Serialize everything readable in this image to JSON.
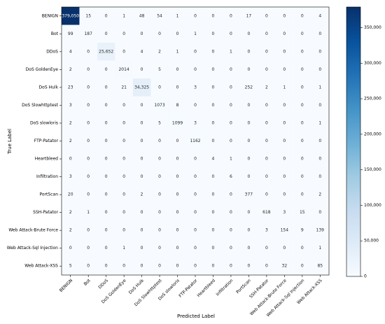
{
  "chart_data": {
    "type": "heatmap",
    "xlabel": "Predicted Label",
    "ylabel": "True Label",
    "x_categories": [
      "BENIGN",
      "Bot",
      "DDoS",
      "DoS GoldenEye",
      "DoS Hulk",
      "DoS Slowhttptest",
      "DoS slowloris",
      "FTP-Patator",
      "Heartbleed",
      "Infiltration",
      "PortScan",
      "SSH-Patator",
      "Web Attack-Brute Force",
      "Web Attack-Sql Injection",
      "Web Attack-XSS"
    ],
    "y_categories": [
      "BENIGN",
      "Bot",
      "DDoS",
      "DoS GoldenEye",
      "DoS Hulk",
      "DoS Slowhttptest",
      "DoS slowloris",
      "FTP-Patator",
      "Heartbleed",
      "Infiltration",
      "PortScan",
      "SSH-Patator",
      "Web Attack-Brute Force",
      "Web Attack-Sql Injection",
      "Web Attack-XSS"
    ],
    "values": [
      [
        379050,
        15,
        0,
        1,
        48,
        54,
        1,
        0,
        0,
        0,
        17,
        0,
        0,
        0,
        4
      ],
      [
        99,
        187,
        0,
        0,
        0,
        0,
        0,
        1,
        0,
        0,
        0,
        0,
        0,
        0,
        0
      ],
      [
        4,
        0,
        25652,
        0,
        4,
        2,
        1,
        0,
        0,
        1,
        0,
        0,
        0,
        0,
        0
      ],
      [
        2,
        0,
        0,
        2014,
        0,
        5,
        0,
        0,
        0,
        0,
        0,
        0,
        0,
        0,
        0
      ],
      [
        23,
        0,
        0,
        21,
        34325,
        0,
        0,
        3,
        0,
        0,
        252,
        2,
        1,
        0,
        1
      ],
      [
        3,
        0,
        0,
        0,
        0,
        1073,
        8,
        0,
        0,
        0,
        0,
        0,
        0,
        0,
        0
      ],
      [
        2,
        0,
        0,
        0,
        0,
        5,
        1099,
        3,
        0,
        0,
        0,
        0,
        0,
        0,
        1
      ],
      [
        2,
        0,
        0,
        0,
        0,
        0,
        0,
        1162,
        0,
        0,
        0,
        0,
        0,
        0,
        0
      ],
      [
        0,
        0,
        0,
        0,
        0,
        0,
        0,
        0,
        4,
        1,
        0,
        0,
        0,
        0,
        0
      ],
      [
        3,
        0,
        0,
        0,
        0,
        0,
        0,
        0,
        0,
        6,
        0,
        0,
        0,
        0,
        0
      ],
      [
        20,
        0,
        0,
        0,
        2,
        0,
        0,
        0,
        0,
        0,
        377,
        0,
        0,
        0,
        2
      ],
      [
        2,
        1,
        0,
        0,
        0,
        0,
        0,
        0,
        0,
        0,
        0,
        618,
        3,
        15,
        0
      ],
      [
        2,
        0,
        0,
        0,
        0,
        0,
        0,
        0,
        0,
        0,
        0,
        3,
        154,
        9,
        139
      ],
      [
        0,
        0,
        0,
        1,
        0,
        0,
        0,
        0,
        0,
        0,
        0,
        0,
        0,
        0,
        1
      ],
      [
        5,
        0,
        0,
        0,
        0,
        0,
        0,
        0,
        0,
        0,
        0,
        0,
        32,
        0,
        85
      ]
    ],
    "value_labels": [
      [
        "379,050",
        "15",
        "0",
        "1",
        "48",
        "54",
        "1",
        "0",
        "0",
        "0",
        "17",
        "0",
        "0",
        "0",
        "4"
      ],
      [
        "99",
        "187",
        "0",
        "0",
        "0",
        "0",
        "0",
        "1",
        "0",
        "0",
        "0",
        "0",
        "0",
        "0",
        "0"
      ],
      [
        "4",
        "0",
        "25,652",
        "0",
        "4",
        "2",
        "1",
        "0",
        "0",
        "1",
        "0",
        "0",
        "0",
        "0",
        "0"
      ],
      [
        "2",
        "0",
        "0",
        "2014",
        "0",
        "5",
        "0",
        "0",
        "0",
        "0",
        "0",
        "0",
        "0",
        "0",
        "0"
      ],
      [
        "23",
        "0",
        "0",
        "21",
        "34,325",
        "0",
        "0",
        "3",
        "0",
        "0",
        "252",
        "2",
        "1",
        "0",
        "1"
      ],
      [
        "3",
        "0",
        "0",
        "0",
        "0",
        "1073",
        "8",
        "0",
        "0",
        "0",
        "0",
        "0",
        "0",
        "0",
        "0"
      ],
      [
        "2",
        "0",
        "0",
        "0",
        "0",
        "5",
        "1099",
        "3",
        "0",
        "0",
        "0",
        "0",
        "0",
        "0",
        "1"
      ],
      [
        "2",
        "0",
        "0",
        "0",
        "0",
        "0",
        "0",
        "1162",
        "0",
        "0",
        "0",
        "0",
        "0",
        "0",
        "0"
      ],
      [
        "0",
        "0",
        "0",
        "0",
        "0",
        "0",
        "0",
        "0",
        "4",
        "1",
        "0",
        "0",
        "0",
        "0",
        "0"
      ],
      [
        "3",
        "0",
        "0",
        "0",
        "0",
        "0",
        "0",
        "0",
        "0",
        "6",
        "0",
        "0",
        "0",
        "0",
        "0"
      ],
      [
        "20",
        "0",
        "0",
        "0",
        "2",
        "0",
        "0",
        "0",
        "0",
        "0",
        "377",
        "0",
        "0",
        "0",
        "2"
      ],
      [
        "2",
        "1",
        "0",
        "0",
        "0",
        "0",
        "0",
        "0",
        "0",
        "0",
        "0",
        "618",
        "3",
        "15",
        "0"
      ],
      [
        "2",
        "0",
        "0",
        "0",
        "0",
        "0",
        "0",
        "0",
        "0",
        "0",
        "0",
        "3",
        "154",
        "9",
        "139"
      ],
      [
        "0",
        "0",
        "0",
        "1",
        "0",
        "0",
        "0",
        "0",
        "0",
        "0",
        "0",
        "0",
        "0",
        "0",
        "1"
      ],
      [
        "5",
        "0",
        "0",
        "0",
        "0",
        "0",
        "0",
        "0",
        "0",
        "0",
        "0",
        "0",
        "32",
        "0",
        "85"
      ]
    ],
    "colormap": "Blues",
    "clim": [
      0,
      379050
    ],
    "cticks": [
      0,
      {
        "value": 50000,
        "label": "50,000"
      },
      {
        "value": 100000,
        "label": "100,000"
      },
      {
        "value": 150000,
        "label": "150,000"
      },
      {
        "value": 200000,
        "label": "200,000"
      },
      {
        "value": 250000,
        "label": "250,000"
      },
      {
        "value": 300000,
        "label": "300,000"
      },
      {
        "value": 350000,
        "label": "350,000"
      }
    ]
  }
}
